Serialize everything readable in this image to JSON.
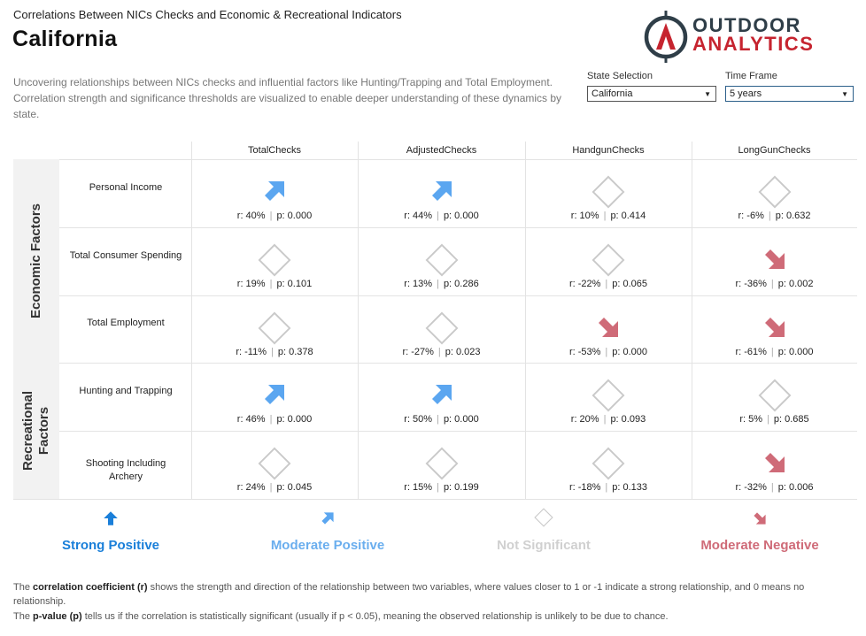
{
  "header": {
    "kicker": "Correlations Between NICs Checks and Economic & Recreational Indicators",
    "title": "California",
    "description": "Uncovering relationships between NICs checks and influential factors like Hunting/Trapping and Total Employment. Correlation strength and significance thresholds are visualized to enable deeper understanding of these dynamics by state."
  },
  "logo": {
    "line1": "OUTDOOR",
    "line2": "ANALYTICS"
  },
  "controls": {
    "state_label": "State Selection",
    "state_value": "California",
    "time_label": "Time Frame",
    "time_value": "5 years"
  },
  "columns": [
    "TotalChecks",
    "AdjustedChecks",
    "HandgunChecks",
    "LongGunChecks"
  ],
  "groups": [
    {
      "label": "Economic Factors"
    },
    {
      "label_line1": "Recreational",
      "label_line2": "Factors"
    }
  ],
  "rows": [
    {
      "label": "Personal Income",
      "cells": [
        {
          "r": "r: 40%",
          "p": "p: 0.000",
          "icon": "moderate-positive"
        },
        {
          "r": "r: 44%",
          "p": "p: 0.000",
          "icon": "moderate-positive"
        },
        {
          "r": "r: 10%",
          "p": "p: 0.414",
          "icon": "not-significant"
        },
        {
          "r": "r: -6%",
          "p": "p: 0.632",
          "icon": "not-significant"
        }
      ]
    },
    {
      "label": "Total Consumer Spending",
      "cells": [
        {
          "r": "r: 19%",
          "p": "p: 0.101",
          "icon": "not-significant"
        },
        {
          "r": "r: 13%",
          "p": "p: 0.286",
          "icon": "not-significant"
        },
        {
          "r": "r: -22%",
          "p": "p: 0.065",
          "icon": "not-significant"
        },
        {
          "r": "r: -36%",
          "p": "p: 0.002",
          "icon": "moderate-negative"
        }
      ]
    },
    {
      "label": "Total Employment",
      "cells": [
        {
          "r": "r: -11%",
          "p": "p: 0.378",
          "icon": "not-significant"
        },
        {
          "r": "r: -27%",
          "p": "p: 0.023",
          "icon": "not-significant"
        },
        {
          "r": "r: -53%",
          "p": "p: 0.000",
          "icon": "moderate-negative"
        },
        {
          "r": "r: -61%",
          "p": "p: 0.000",
          "icon": "moderate-negative"
        }
      ]
    },
    {
      "label": "Hunting and Trapping",
      "cells": [
        {
          "r": "r: 46%",
          "p": "p: 0.000",
          "icon": "moderate-positive"
        },
        {
          "r": "r: 50%",
          "p": "p: 0.000",
          "icon": "moderate-positive"
        },
        {
          "r": "r: 20%",
          "p": "p: 0.093",
          "icon": "not-significant"
        },
        {
          "r": "r: 5%",
          "p": "p: 0.685",
          "icon": "not-significant"
        }
      ]
    },
    {
      "label_line1": "Shooting Including",
      "label_line2": "Archery",
      "cells": [
        {
          "r": "r: 24%",
          "p": "p: 0.045",
          "icon": "not-significant"
        },
        {
          "r": "r: 15%",
          "p": "p: 0.199",
          "icon": "not-significant"
        },
        {
          "r": "r: -18%",
          "p": "p: 0.133",
          "icon": "not-significant"
        },
        {
          "r": "r: -32%",
          "p": "p: 0.006",
          "icon": "moderate-negative"
        }
      ]
    }
  ],
  "legend": [
    {
      "label": "Strong Positive",
      "color": "#1a7fd9",
      "icon": "strong-positive"
    },
    {
      "label": "Moderate Positive",
      "color": "#6aaeee",
      "icon": "moderate-positive"
    },
    {
      "label": "Not Significant",
      "color": "#d0d0d0",
      "icon": "not-significant"
    },
    {
      "label": "Moderate Negative",
      "color": "#cf6b78",
      "icon": "moderate-negative"
    }
  ],
  "footnotes": {
    "r_prefix": "The ",
    "r_term": "correlation coefficient (r)",
    "r_text": " shows the strength and direction of the relationship between two variables, where values closer to 1 or -1 indicate a strong relationship, and 0 means no relationship.",
    "p_prefix": "The ",
    "p_term": "p-value (p)",
    "p_text": " tells us if the correlation is statistically significant (usually if p < 0.05), meaning the observed relationship is unlikely to be due to chance."
  },
  "colors": {
    "moderate_positive": "#5ba6f0",
    "strong_positive": "#1a7fd9",
    "not_significant": "#c9c9c9",
    "moderate_negative": "#cf6b78"
  }
}
